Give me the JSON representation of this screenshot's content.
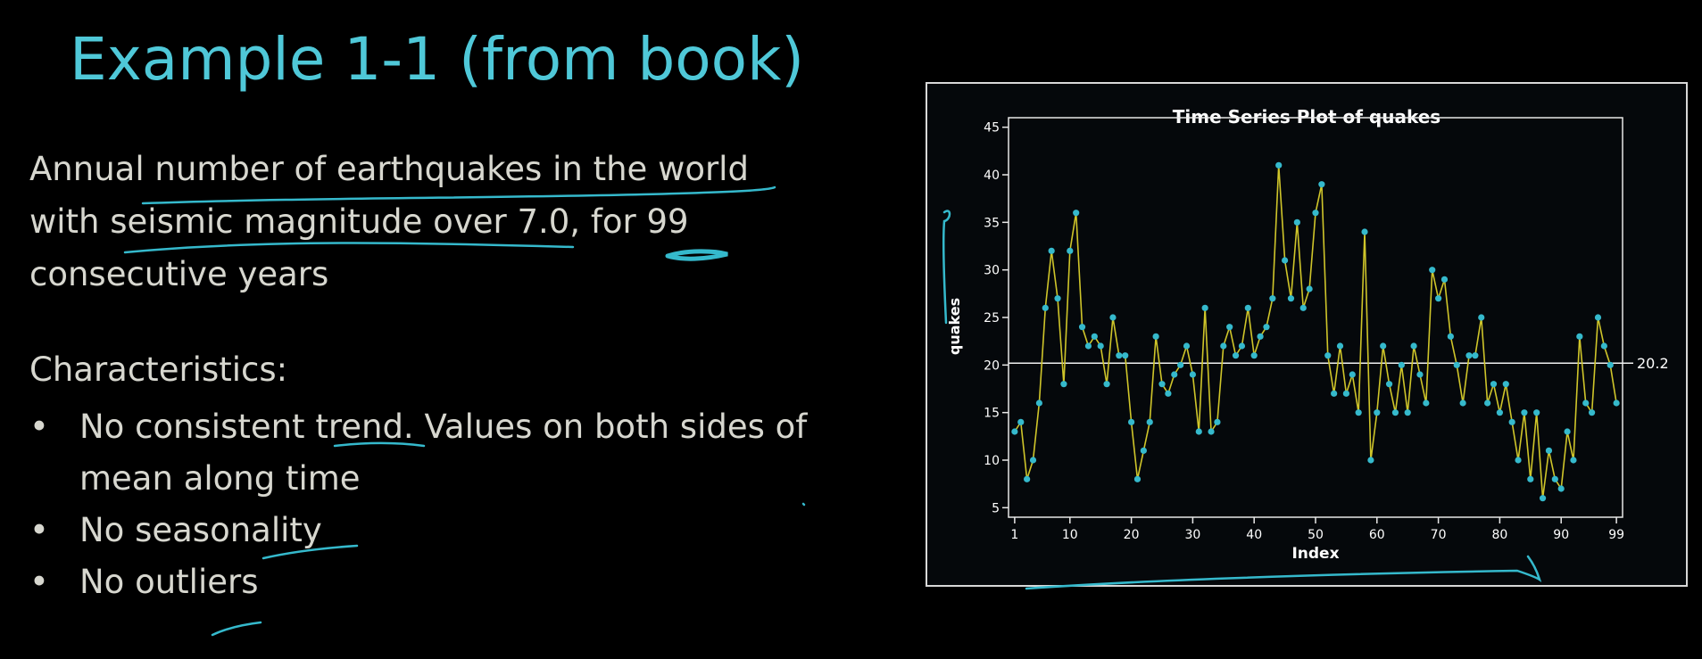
{
  "slide": {
    "title": "Example 1-1 (from book)",
    "intro": "Annual number of earthquakes in the world with seismic magnitude over 7.0, for 99 consecutive years",
    "characteristics_heading": "Characteristics:",
    "bullets": [
      "No consistent trend. Values on both sides of mean along time",
      "No seasonality",
      "No outliers"
    ],
    "bullet_glyph": "•"
  },
  "colors": {
    "title": "#4fc8d8",
    "text": "#d7d7cf",
    "background": "#000000",
    "line": "#cfc52a",
    "marker": "#35b9cc",
    "ink": "#35b9cc"
  },
  "chart_data": {
    "type": "line",
    "title": "Time Series Plot of quakes",
    "xlabel": "Index",
    "ylabel": "quakes",
    "x_ticks": [
      1,
      10,
      20,
      30,
      40,
      50,
      60,
      70,
      80,
      90,
      99
    ],
    "y_ticks": [
      5,
      10,
      15,
      20,
      25,
      30,
      35,
      40,
      45
    ],
    "xlim": [
      0,
      100
    ],
    "ylim": [
      4,
      46
    ],
    "reference_line": {
      "value": 20.2,
      "label": "20.2"
    },
    "grid": false,
    "series": [
      {
        "values": [
          13,
          14,
          8,
          10,
          16,
          26,
          32,
          27,
          18,
          32,
          36,
          24,
          22,
          23,
          22,
          18,
          25,
          21,
          21,
          14,
          8,
          11,
          14,
          23,
          18,
          17,
          19,
          20,
          22,
          19,
          13,
          26,
          13,
          14,
          22,
          24,
          21,
          22,
          26,
          21,
          23,
          24,
          27,
          41,
          31,
          27,
          35,
          26,
          28,
          36,
          39,
          21,
          17,
          22,
          17,
          19,
          15,
          34,
          10,
          15,
          22,
          18,
          15,
          20,
          15,
          22,
          19,
          16,
          30,
          27,
          29,
          23,
          20,
          16,
          21,
          21,
          25,
          16,
          18,
          15,
          18,
          14,
          10,
          15,
          8,
          15,
          6,
          11,
          8,
          7,
          13,
          10,
          23,
          16,
          15,
          25,
          22,
          20,
          16
        ]
      }
    ]
  }
}
